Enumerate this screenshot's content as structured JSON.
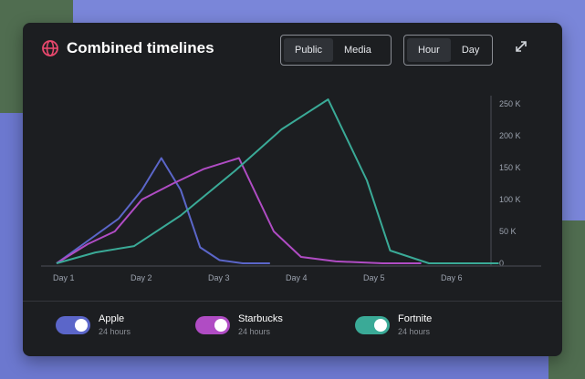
{
  "header": {
    "title": "Combined timelines",
    "visibility_options": [
      "Public",
      "Media"
    ],
    "period_options": [
      "Hour",
      "Day"
    ]
  },
  "legend": [
    {
      "name": "Apple",
      "sub": "24 hours",
      "color": "#5b66c9"
    },
    {
      "name": "Starbucks",
      "sub": "24 hours",
      "color": "#b04cc4"
    },
    {
      "name": "Fortnite",
      "sub": "24 hours",
      "color": "#3aaa97"
    }
  ],
  "icons": {
    "title": "globe-icon",
    "expand": "expand-icon"
  },
  "chart_data": {
    "type": "line",
    "x": [
      0,
      0.5,
      1,
      1.5,
      2,
      2.5,
      3,
      3.5,
      4,
      4.5,
      5,
      5.5,
      6,
      6.5
    ],
    "x_tick_labels": [
      "Day 1",
      "Day 2",
      "Day 3",
      "Day 4",
      "Day 5",
      "Day 6"
    ],
    "y_tick_labels": [
      "250 K",
      "200 K",
      "150 K",
      "100 K",
      "50 K",
      "0"
    ],
    "y_ticks": [
      250,
      200,
      150,
      100,
      50,
      0
    ],
    "ylim": [
      0,
      260
    ],
    "grid": false,
    "series": [
      {
        "name": "Apple",
        "color": "#5b66c9",
        "points": [
          [
            0,
            0
          ],
          [
            0.4,
            35
          ],
          [
            0.8,
            70
          ],
          [
            1.1,
            115
          ],
          [
            1.35,
            165
          ],
          [
            1.6,
            115
          ],
          [
            1.85,
            25
          ],
          [
            2.1,
            5
          ],
          [
            2.4,
            0
          ],
          [
            2.75,
            0
          ]
        ]
      },
      {
        "name": "Starbucks",
        "color": "#b04cc4",
        "points": [
          [
            0,
            0
          ],
          [
            0.4,
            30
          ],
          [
            0.75,
            50
          ],
          [
            1.1,
            100
          ],
          [
            1.5,
            125
          ],
          [
            1.9,
            148
          ],
          [
            2.35,
            165
          ],
          [
            2.8,
            50
          ],
          [
            3.15,
            10
          ],
          [
            3.6,
            3
          ],
          [
            4.2,
            0
          ],
          [
            4.7,
            0
          ]
        ]
      },
      {
        "name": "Fortnite",
        "color": "#3aaa97",
        "points": [
          [
            0,
            0
          ],
          [
            0.5,
            17
          ],
          [
            1.0,
            27
          ],
          [
            1.6,
            75
          ],
          [
            2.3,
            145
          ],
          [
            2.9,
            210
          ],
          [
            3.5,
            257
          ],
          [
            4.0,
            130
          ],
          [
            4.3,
            20
          ],
          [
            4.8,
            0
          ],
          [
            5.3,
            0
          ],
          [
            5.7,
            0
          ]
        ]
      }
    ]
  }
}
